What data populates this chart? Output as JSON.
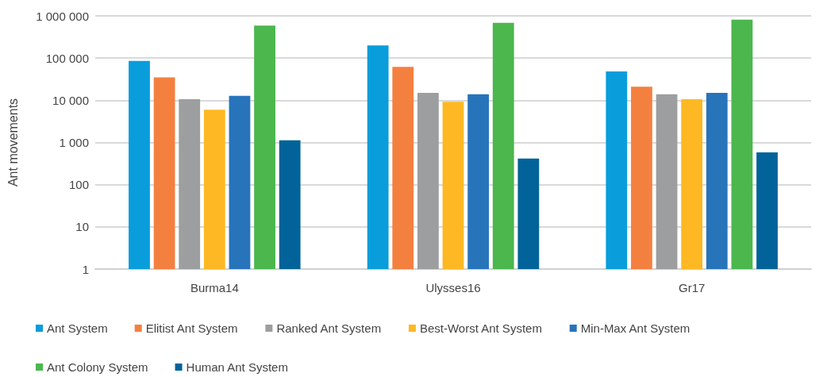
{
  "chart_data": {
    "type": "bar",
    "ylabel": "Ant movements",
    "log": "y",
    "grid": "y",
    "legend": "bottom",
    "categories": [
      "Burma14",
      "Ulysses16",
      "Gr17"
    ],
    "ylim": [
      1,
      1000000
    ],
    "yticks": [
      1,
      10,
      100,
      {
        "value": 1000,
        "label": "1 000"
      },
      {
        "value": 10000,
        "label": "10 000"
      },
      {
        "value": 100000,
        "label": "100 000"
      },
      {
        "value": 1000000,
        "label": "1 000 000"
      }
    ],
    "series": [
      {
        "name": "Ant System",
        "color": "#0a9ddb",
        "values": [
          86000,
          199000,
          48000
        ]
      },
      {
        "name": "Elitist Ant System",
        "color": "#f48040",
        "values": [
          35000,
          62000,
          21000
        ]
      },
      {
        "name": "Ranked Ant System",
        "color": "#9c9e9f",
        "values": [
          10600,
          15000,
          13900
        ]
      },
      {
        "name": "Best-Worst Ant System",
        "color": "#fdb824",
        "values": [
          6000,
          9200,
          10600
        ]
      },
      {
        "name": "Min-Max Ant System",
        "color": "#2774bb",
        "values": [
          12800,
          13900,
          15000
        ]
      },
      {
        "name": "Ant Colony System",
        "color": "#4bb74d",
        "values": [
          586000,
          687000,
          817000
        ]
      },
      {
        "name": "Human Ant System",
        "color": "#016399",
        "values": [
          1130,
          418,
          582
        ]
      }
    ]
  }
}
